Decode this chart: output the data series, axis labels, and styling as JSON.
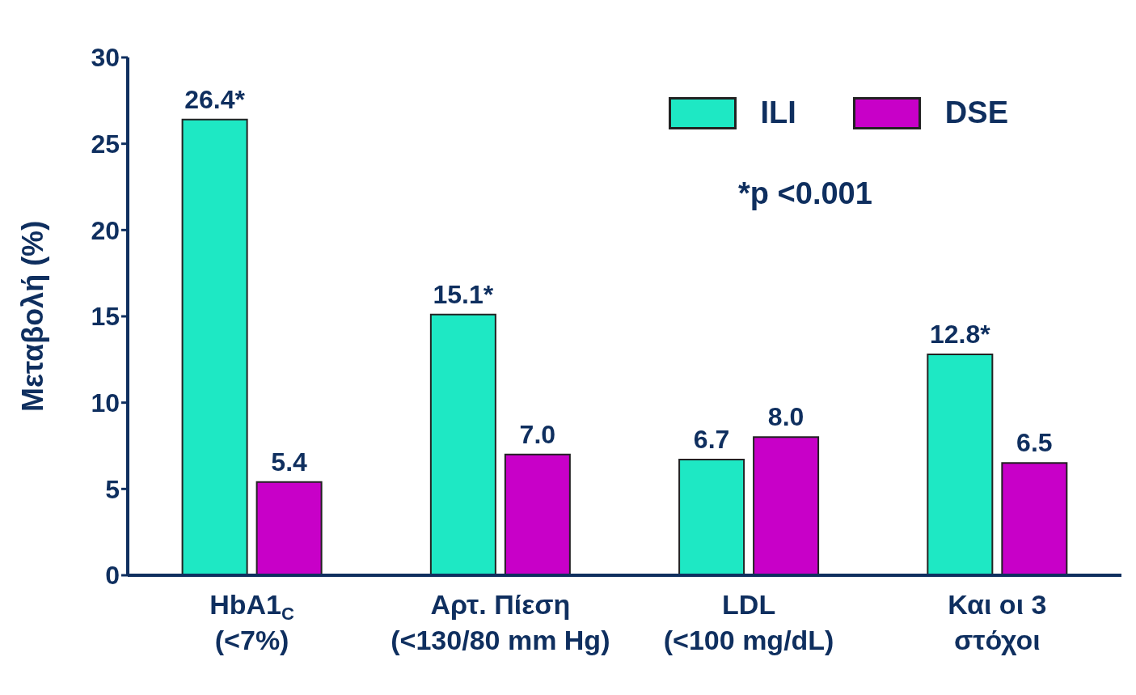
{
  "chart_data": {
    "type": "bar",
    "ylabel": "Μεταβολή (%)",
    "categories": [
      "HbA1$_{C}$\n(<7%)",
      "Αρτ. Πίεση\n(<130/80 mm Hg)",
      "LDL\n(<100 mg/dL)",
      "Και οι 3\nστόχοι"
    ],
    "series": [
      {
        "name": "ILI",
        "color": "#1ee8c4",
        "values": [
          26.4,
          15.1,
          6.7,
          12.8
        ],
        "value_labels": [
          "26.4*",
          "15.1*",
          "6.7",
          "12.8*"
        ]
      },
      {
        "name": "DSE",
        "color": "#c800c8",
        "values": [
          5.4,
          7.0,
          8.0,
          6.5
        ],
        "value_labels": [
          "5.4",
          "7.0",
          "8.0",
          "6.5"
        ]
      }
    ],
    "ylim": [
      0,
      30
    ],
    "yticks": [
      0,
      5,
      10,
      15,
      20,
      25,
      30
    ],
    "grid": false,
    "legend": "top right",
    "annotations": [
      "*p <0.001"
    ]
  }
}
